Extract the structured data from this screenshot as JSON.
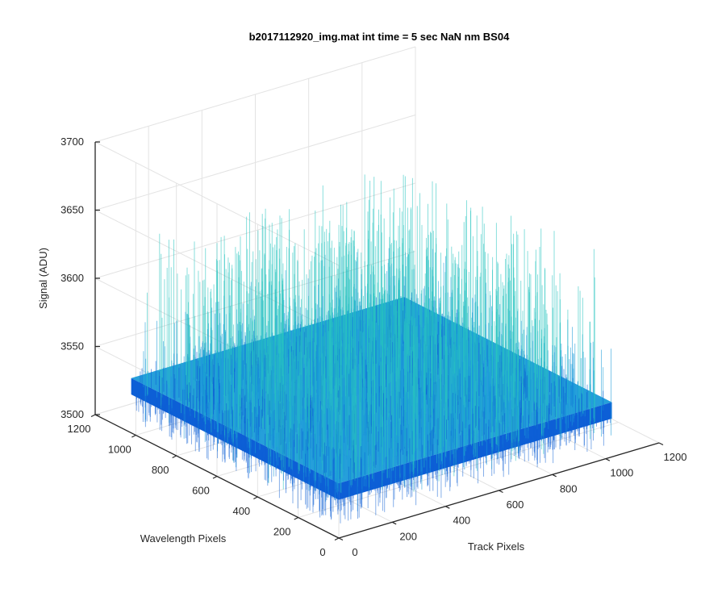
{
  "chart_data": {
    "type": "surface",
    "title": "b2017112920_img.mat int time = 5 sec  NaN nm BS04",
    "xlabel": "Track Pixels",
    "ylabel": "Wavelength Pixels",
    "zlabel": "Signal (ADU)",
    "xlim": [
      0,
      1200
    ],
    "ylim": [
      0,
      1200
    ],
    "zlim": [
      3500,
      3700
    ],
    "xticks": [
      "0",
      "200",
      "400",
      "600",
      "800",
      "1000",
      "1200"
    ],
    "yticks": [
      "0",
      "200",
      "400",
      "600",
      "800",
      "1000",
      "1200"
    ],
    "zticks": [
      "3500",
      "3550",
      "3600",
      "3650",
      "3700"
    ],
    "grid": true,
    "surface": {
      "x_range": [
        1,
        1024
      ],
      "y_range": [
        1,
        1024
      ],
      "mean_signal": 3540,
      "noise_range": [
        3510,
        3650
      ],
      "colormap": "parula"
    },
    "colors": {
      "surface_low": "#0d5fd6",
      "surface_mid": "#1a9ad8",
      "surface_high": "#28c5c0",
      "grid": "#e3e3e3",
      "axis": "#262626"
    }
  }
}
